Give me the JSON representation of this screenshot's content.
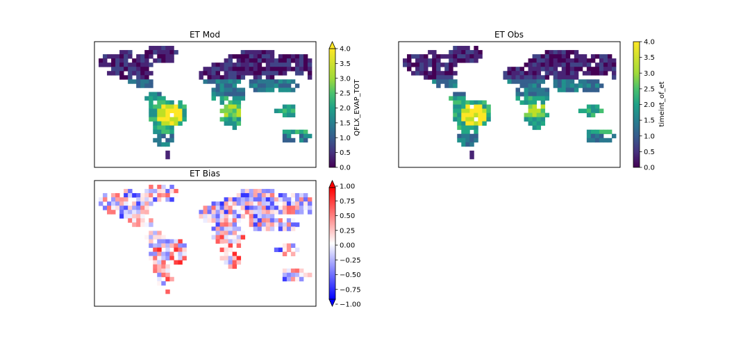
{
  "chart_data": [
    {
      "type": "heatmap",
      "title": "ET Mod",
      "colormap": "viridis",
      "colorbar": {
        "label": "QFLX_EVAP_TOT",
        "range": [
          0,
          4
        ],
        "ticks": [
          "0.0",
          "0.5",
          "1.0",
          "1.5",
          "2.0",
          "2.5",
          "3.0",
          "3.5",
          "4.0"
        ],
        "extend": "max"
      }
    },
    {
      "type": "heatmap",
      "title": "ET Obs",
      "colormap": "viridis",
      "colorbar": {
        "label": "timeint_of_et",
        "range": [
          0,
          4
        ],
        "ticks": [
          "0.0",
          "0.5",
          "1.0",
          "1.5",
          "2.0",
          "2.5",
          "3.0",
          "3.5",
          "4.0"
        ],
        "extend": "none"
      }
    },
    {
      "type": "heatmap",
      "title": "ET Bias",
      "colormap": "bwr",
      "colorbar": {
        "label": "",
        "range": [
          -1,
          1
        ],
        "ticks": [
          "1.00",
          "0.75",
          "0.50",
          "0.25",
          "0.00",
          "−0.25",
          "−0.50",
          "−0.75",
          "−1.00"
        ],
        "extend": "both"
      }
    }
  ]
}
